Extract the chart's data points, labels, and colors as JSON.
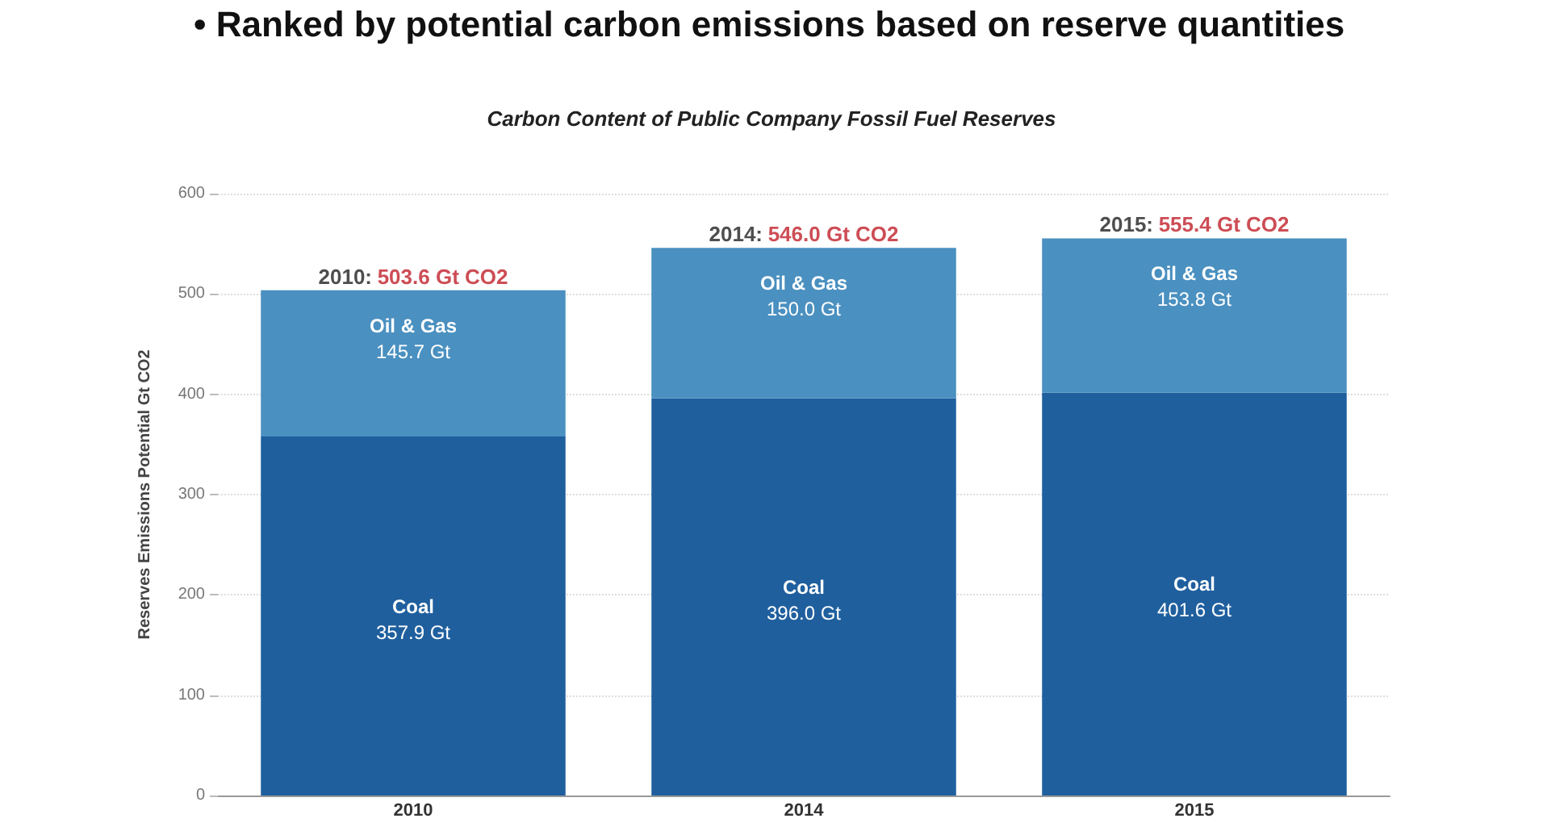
{
  "chart_data": {
    "type": "bar",
    "title": "Carbon Content of Public Company Fossil Fuel Reserves",
    "annotations": [
      "• Ranked by potential carbon emissions based on reserve quantities"
    ],
    "ylabel": "Reserves Emissions Potential Gt CO2",
    "categories": [
      "2010",
      "2014",
      "2015"
    ],
    "stacked": true,
    "series": [
      {
        "name": "Coal",
        "color": "#1f5f9e",
        "values": [
          357.9,
          396.0,
          401.6
        ],
        "value_labels": [
          "357.9 Gt",
          "396.0 Gt",
          "401.6 Gt"
        ]
      },
      {
        "name": "Oil & Gas",
        "color": "#4a90c0",
        "values": [
          145.7,
          150.0,
          153.8
        ],
        "value_labels": [
          "145.7 Gt",
          "150.0 Gt",
          "153.8 Gt"
        ]
      }
    ],
    "totals": [
      "2010: 503.6 Gt CO2",
      "2014: 546.0 Gt CO2",
      "2015: 555.4 Gt CO2"
    ],
    "ylim": [
      0,
      600
    ],
    "yticks": [
      0,
      100,
      200,
      300,
      400,
      500,
      600
    ],
    "grid": "y",
    "legend": false
  }
}
